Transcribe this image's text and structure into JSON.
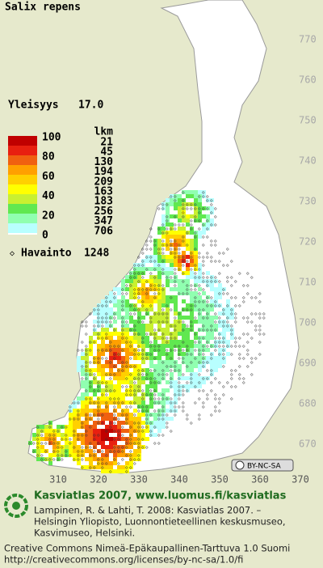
{
  "title": "Salix repens",
  "frequency": {
    "label": "Yleisyys",
    "value": "17.0"
  },
  "legend": {
    "scale_ticks": [
      100,
      80,
      60,
      40,
      20,
      0
    ],
    "count_header": "lkm",
    "counts": [
      21,
      45,
      130,
      194,
      209,
      163,
      183,
      256,
      347,
      706
    ],
    "colors": [
      "#c00000",
      "#e82010",
      "#f06010",
      "#ffa000",
      "#ffd000",
      "#ffff00",
      "#c8f030",
      "#60e850",
      "#90ffb0",
      "#b8ffff"
    ]
  },
  "observations": {
    "label": "Havainto",
    "value": 1248
  },
  "grid": {
    "northing_labels": [
      770,
      760,
      750,
      740,
      730,
      720,
      710,
      700,
      690,
      680,
      670
    ],
    "easting_labels": [
      310,
      320,
      330,
      340,
      350,
      360,
      370
    ]
  },
  "license_badge": "BY-NC-SA",
  "credits": {
    "heading": "Kasviatlas 2007, www.luomus.fi/kasviatlas",
    "lines": [
      "Lampinen, R. & Lahti, T. 2008: Kasviatlas 2007. –",
      "Helsingin Yliopisto, Luonnontieteellinen keskusmuseo,",
      "Kasvimuseo, Helsinki."
    ],
    "license": [
      "Creative Commons Nimeä-Epäkaupallinen-Tarttuva 1.0 Suomi",
      "http://creativecommons.org/licenses/by-nc-sa/1.0/fi"
    ]
  }
}
